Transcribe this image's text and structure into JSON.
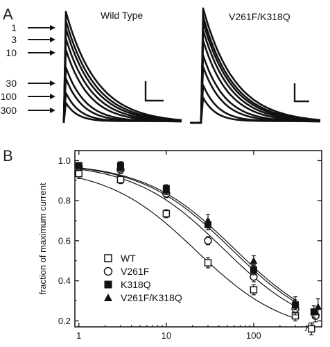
{
  "panel_a": {
    "letter": "A",
    "wt_title": "Wild Type",
    "mut_title": "V261F/K318Q",
    "concentration_labels": [
      "1",
      "3",
      "10",
      "30",
      "100",
      "300"
    ],
    "wt_peaks": [
      1.0,
      0.92,
      0.85,
      0.76,
      0.66,
      0.5,
      0.4,
      0.27,
      0.18
    ],
    "mut_peaks": [
      1.0,
      0.93,
      0.88,
      0.81,
      0.72,
      0.59,
      0.49,
      0.33,
      0.22
    ]
  },
  "panel_b": {
    "letter": "B",
    "legend_items": [
      {
        "label": "WT",
        "marker": "open-square"
      },
      {
        "label": "V261F",
        "marker": "open-circle"
      },
      {
        "label": "K318Q",
        "marker": "filled-square"
      },
      {
        "label": "V261F/K318Q",
        "marker": "filled-triangle"
      }
    ]
  },
  "chart_data": {
    "type": "scatter",
    "title": "",
    "xlabel": "",
    "ylabel": "fraction of maximum current",
    "xscale": "log",
    "xlim": [
      0.9,
      600
    ],
    "ylim": [
      0.17,
      1.05
    ],
    "x_ticks": [
      1,
      10,
      100
    ],
    "x_tick_labels": [
      "1",
      "10",
      "100"
    ],
    "y_ticks": [
      0.2,
      0.4,
      0.6,
      0.8,
      1.0
    ],
    "y_tick_labels": [
      "0.2",
      "0.4",
      "0.6",
      "0.8",
      "1.0"
    ],
    "legend_position": "bottom-left",
    "grid": false,
    "x": [
      1,
      3,
      10,
      30,
      100,
      300,
      500
    ],
    "series": [
      {
        "name": "WT",
        "marker": "open-square",
        "y": [
          0.935,
          0.905,
          0.735,
          0.49,
          0.355,
          0.225,
          0.16
        ],
        "err": [
          0.025,
          0.02,
          0.02,
          0.025,
          0.025,
          0.025,
          0.03
        ],
        "fit": {
          "ic50": 22,
          "n": 0.85,
          "min": 0.13,
          "max": 0.97
        }
      },
      {
        "name": "V261F",
        "marker": "open-circle",
        "y": [
          0.97,
          0.955,
          0.835,
          0.6,
          0.42,
          0.26,
          0.225
        ],
        "err": [
          0.015,
          0.02,
          0.02,
          0.02,
          0.025,
          0.03,
          0.03
        ],
        "fit": {
          "ic50": 45,
          "n": 0.85,
          "min": 0.13,
          "max": 0.99
        }
      },
      {
        "name": "K318Q",
        "marker": "filled-square",
        "y": [
          0.975,
          0.975,
          0.86,
          0.68,
          0.455,
          0.28,
          0.245
        ],
        "err": [
          0.015,
          0.02,
          0.02,
          0.025,
          0.025,
          0.025,
          0.03
        ],
        "fit": {
          "ic50": 55,
          "n": 0.85,
          "min": 0.13,
          "max": 0.99
        }
      },
      {
        "name": "V261F/K318Q",
        "marker": "filled-triangle",
        "y": [
          0.975,
          0.965,
          0.85,
          0.7,
          0.5,
          0.29,
          0.27
        ],
        "err": [
          0.015,
          0.02,
          0.02,
          0.03,
          0.025,
          0.03,
          0.04
        ],
        "fit": {
          "ic50": 60,
          "n": 0.85,
          "min": 0.13,
          "max": 0.99
        }
      }
    ]
  }
}
